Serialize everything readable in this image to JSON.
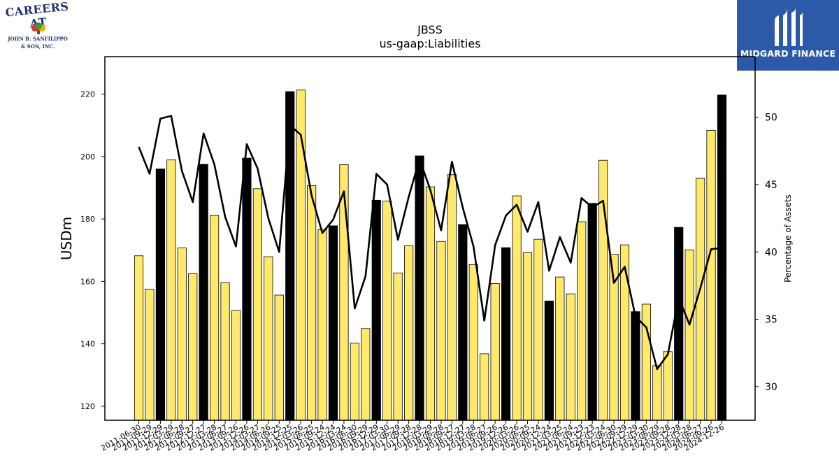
{
  "logos": {
    "left_line1": "CAREERS AT",
    "left_line2": "JOHN B. SANFILIPPO",
    "left_line3": "& SON, INC.",
    "right_text": "MIDGARD FINANCE"
  },
  "colors": {
    "bar_normal": "#ffe96b",
    "bar_highlight": "#000000",
    "bar_edge": "#000000",
    "line": "#000000",
    "mf_bg": "#2d5aa8"
  },
  "chart_data": {
    "type": "bar",
    "title": "JBSS",
    "subtitle": "us-gaap:Liabilities",
    "ylabel": "USDm",
    "y2label": "Percentage of Assets",
    "ylim": [
      115.5,
      232
    ],
    "y2lim": [
      27.5,
      54.5
    ],
    "yticks": [
      120,
      140,
      160,
      180,
      200,
      220
    ],
    "y2ticks": [
      30,
      35,
      40,
      45,
      50
    ],
    "categories": [
      "2011-06-30",
      "2011-09-29",
      "2011-12-29",
      "2012-03-29",
      "2012-06-28",
      "2012-09-27",
      "2012-12-27",
      "2013-03-28",
      "2013-06-27",
      "2013-09-26",
      "2013-12-26",
      "2014-03-27",
      "2014-06-26",
      "2014-09-25",
      "2014-12-25",
      "2015-03-26",
      "2015-06-25",
      "2015-09-24",
      "2015-12-24",
      "2016-03-24",
      "2016-06-30",
      "2016-09-29",
      "2016-12-29",
      "2017-03-30",
      "2017-06-29",
      "2017-09-28",
      "2017-12-28",
      "2018-03-29",
      "2018-06-28",
      "2018-09-27",
      "2018-12-27",
      "2019-03-28",
      "2019-06-27",
      "2019-09-26",
      "2019-12-26",
      "2020-03-26",
      "2020-06-25",
      "2020-09-24",
      "2020-12-24",
      "2021-03-25",
      "2021-06-24",
      "2021-09-23",
      "2021-12-23",
      "2022-03-24",
      "2022-06-30",
      "2022-09-29",
      "2022-12-29",
      "2023-03-30",
      "2023-06-29",
      "2023-09-28",
      "2023-12-28",
      "2024-03-28",
      "2024-06-27",
      "2024-09-26",
      "2024-12-26"
    ],
    "values": [
      168.2,
      157.5,
      196.0,
      198.9,
      170.7,
      162.5,
      197.5,
      181.1,
      159.6,
      150.7,
      199.5,
      189.7,
      167.9,
      155.6,
      220.8,
      221.3,
      190.7,
      176.6,
      177.8,
      197.4,
      140.2,
      144.9,
      186.0,
      185.7,
      162.7,
      171.4,
      200.2,
      190.3,
      172.8,
      194.2,
      178.2,
      165.4,
      136.8,
      159.3,
      170.8,
      187.4,
      169.2,
      173.5,
      153.7,
      161.4,
      156.0,
      179.1,
      185.0,
      198.8,
      168.7,
      171.7,
      150.3,
      152.7,
      133.0,
      137.5,
      177.3,
      170.1,
      193.0,
      208.4,
      219.7
    ],
    "highlight": [
      false,
      false,
      true,
      false,
      false,
      false,
      true,
      false,
      false,
      false,
      true,
      false,
      false,
      false,
      true,
      false,
      false,
      false,
      true,
      false,
      false,
      false,
      true,
      false,
      false,
      false,
      true,
      false,
      false,
      false,
      true,
      false,
      false,
      false,
      true,
      false,
      false,
      false,
      true,
      false,
      false,
      false,
      true,
      false,
      false,
      false,
      true,
      false,
      false,
      false,
      true,
      false,
      false,
      false,
      true
    ],
    "pct_of_assets": [
      47.8,
      45.8,
      49.9,
      50.1,
      46.0,
      43.7,
      48.8,
      46.5,
      42.6,
      40.4,
      48.0,
      46.2,
      42.5,
      40.0,
      49.4,
      48.7,
      44.2,
      41.4,
      42.4,
      44.5,
      35.8,
      38.2,
      45.8,
      45.0,
      40.9,
      44.1,
      46.9,
      44.6,
      41.6,
      46.7,
      43.3,
      40.4,
      34.9,
      40.5,
      42.7,
      43.5,
      41.5,
      43.7,
      38.6,
      41.1,
      39.2,
      44.0,
      43.3,
      43.8,
      37.7,
      38.9,
      35.2,
      34.4,
      31.3,
      32.4,
      36.6,
      34.6,
      37.3,
      40.2,
      40.3
    ]
  }
}
